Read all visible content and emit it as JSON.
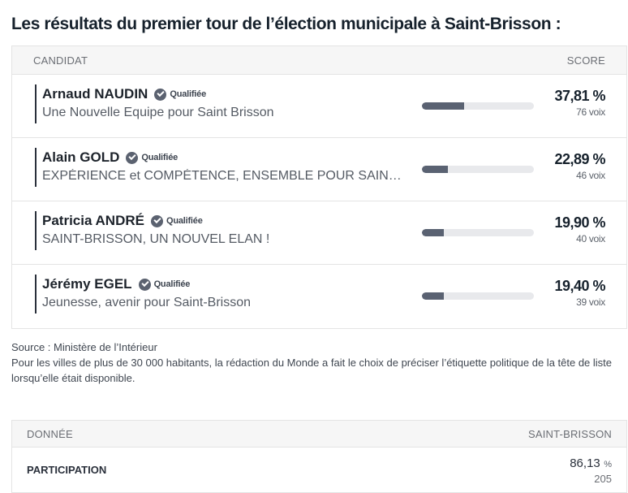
{
  "title": "Les résultats du premier tour de l’élection municipale à Saint-Brisson :",
  "results": {
    "header_candidate": "CANDIDAT",
    "header_score": "SCORE",
    "rows": [
      {
        "name": "Arnaud NAUDIN",
        "status": "Qualifiée",
        "list": "Une Nouvelle Equipe pour Saint Brisson",
        "pct": "37,81 %",
        "votes": "76 voix",
        "share": 0.3781
      },
      {
        "name": "Alain GOLD",
        "status": "Qualifiée",
        "list": "EXPÉRIENCE et COMPÉTENCE, ENSEMBLE POUR SAIN…",
        "pct": "22,89 %",
        "votes": "46 voix",
        "share": 0.2289
      },
      {
        "name": "Patricia ANDRÉ",
        "status": "Qualifiée",
        "list": "SAINT-BRISSON, UN NOUVEL ELAN !",
        "pct": "19,90 %",
        "votes": "40 voix",
        "share": 0.199
      },
      {
        "name": "Jérémy EGEL",
        "status": "Qualifiée",
        "list": "Jeunesse, avenir pour Saint-Brisson",
        "pct": "19,40 %",
        "votes": "39 voix",
        "share": 0.194
      }
    ]
  },
  "source": {
    "line1": "Source : Ministère de l’Intérieur",
    "line2": "Pour les villes de plus de 30 000 habitants, la rédaction du Monde a fait le choix de préciser l’étiquette politique de la tête de liste lorsqu’elle était disponible."
  },
  "data_table": {
    "header_label": "DONNÉE",
    "header_city": "SAINT-BRISSON",
    "rows": [
      {
        "label": "PARTICIPATION",
        "value": "86,13",
        "unit": "%",
        "sub": "205"
      }
    ]
  },
  "colors": {
    "bar_fill": "#5a6272",
    "bar_track": "#e8e9ec",
    "badge": "#5b6270"
  }
}
